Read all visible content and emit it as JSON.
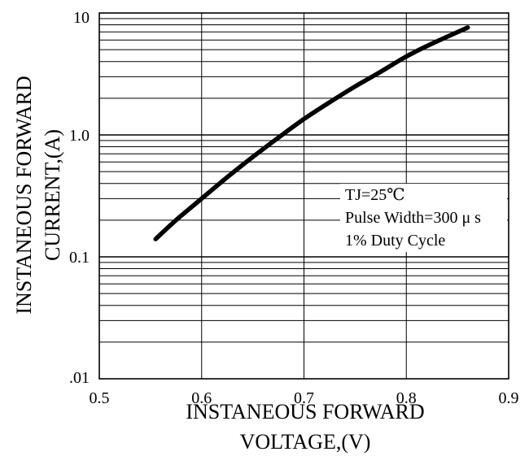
{
  "chart_data": {
    "type": "line",
    "x_scale": "linear",
    "y_scale": "log",
    "xlim": [
      0.5,
      0.9
    ],
    "ylim": [
      0.01,
      10
    ],
    "grid": true,
    "x_ticks": [
      "0.5",
      "0.6",
      "0.7",
      "0.8",
      "0.9"
    ],
    "y_ticks": [
      ".01",
      "0.1",
      "1.0",
      "10"
    ],
    "xlabel_lines": [
      "INSTANEOUS FORWARD",
      "VOLTAGE,(V)"
    ],
    "ylabel_lines": [
      "INSTANEOUS FORWARD",
      "CURRENT,(A)"
    ],
    "annotations": [
      "TJ=25℃",
      "Pulse Width=300 μ s",
      "1% Duty Cycle"
    ],
    "series": [
      {
        "x": [
          0.555,
          0.575,
          0.6,
          0.625,
          0.65,
          0.675,
          0.7,
          0.725,
          0.75,
          0.775,
          0.8,
          0.825,
          0.86
        ],
        "y": [
          0.14,
          0.2,
          0.3,
          0.45,
          0.66,
          0.95,
          1.35,
          1.85,
          2.5,
          3.3,
          4.4,
          5.6,
          7.6
        ]
      }
    ]
  }
}
